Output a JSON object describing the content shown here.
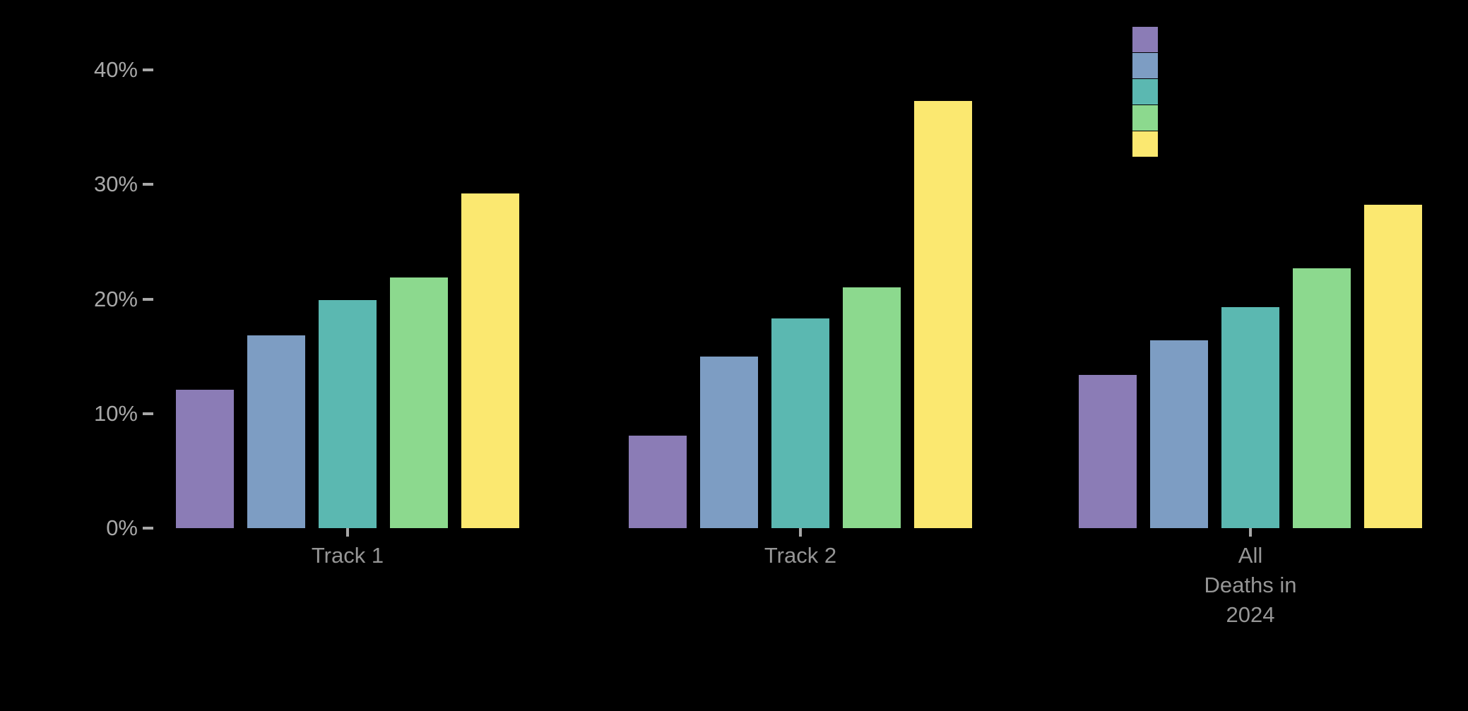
{
  "chart_data": {
    "type": "bar",
    "title": "",
    "xlabel": "",
    "ylabel": "",
    "categories": [
      "Track 1",
      "Track 2",
      "All Deaths in 2024"
    ],
    "category_display": [
      "Track 1",
      "Track 2",
      "All\nDeaths in\n2024"
    ],
    "series": [
      {
        "color": "#8B7CB6",
        "values": [
          12.1,
          8.1,
          13.4
        ]
      },
      {
        "color": "#7D9DC3",
        "values": [
          16.8,
          15.0,
          16.4
        ]
      },
      {
        "color": "#5BB8B1",
        "values": [
          19.9,
          18.3,
          19.3
        ]
      },
      {
        "color": "#8CD98E",
        "values": [
          21.9,
          21.0,
          22.7
        ]
      },
      {
        "color": "#FBE870",
        "values": [
          29.2,
          37.3,
          28.2
        ]
      }
    ],
    "ylim": [
      0,
      43
    ],
    "y_ticks": [
      {
        "value": 0,
        "label": "0%"
      },
      {
        "value": 10,
        "label": "10%"
      },
      {
        "value": 20,
        "label": "20%"
      },
      {
        "value": 30,
        "label": "30%"
      },
      {
        "value": 40,
        "label": "40%"
      }
    ],
    "grid": false,
    "legend_position": "top-right",
    "legend_labels_visible": false,
    "background_color": "#000000",
    "tick_label_color": "#a8a8a8",
    "category_label_color": "#969696"
  }
}
